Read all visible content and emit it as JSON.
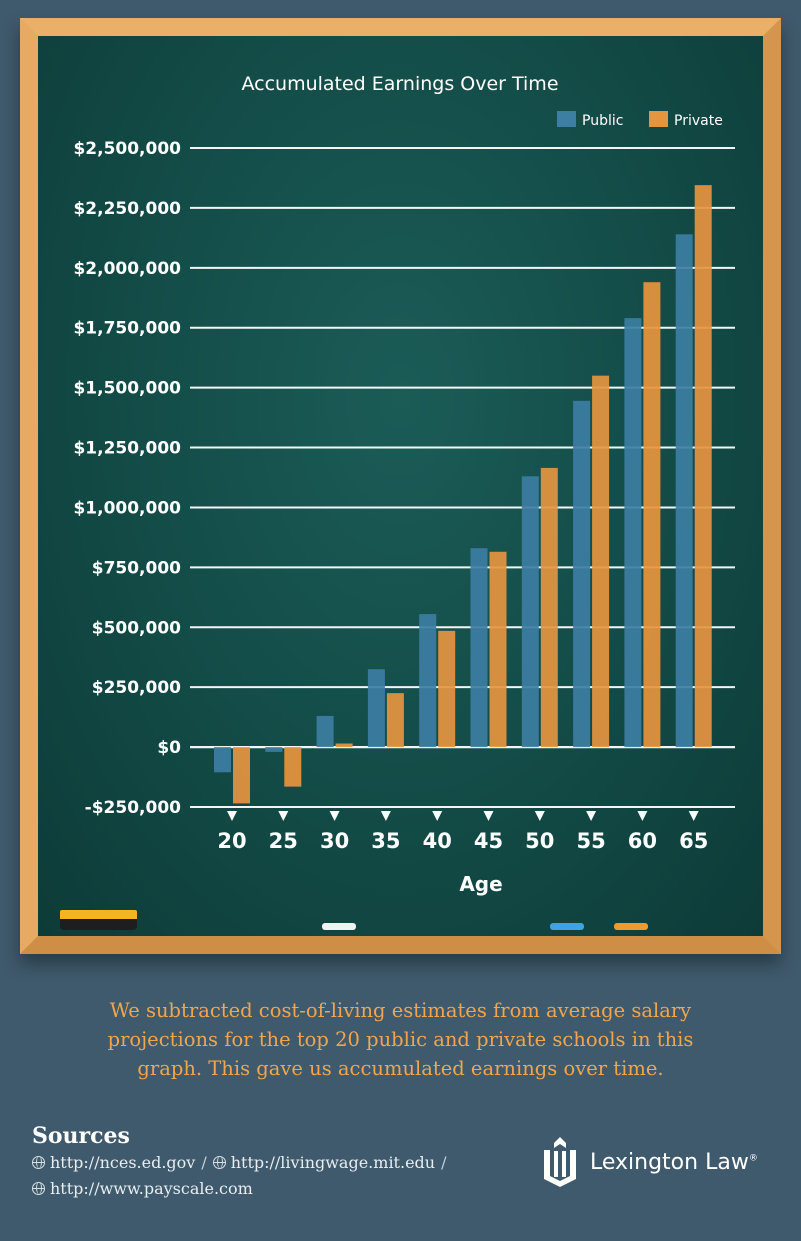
{
  "chart_data": {
    "type": "bar",
    "title": "Accumulated Earnings Over Time",
    "xlabel": "Age",
    "ylabel": "",
    "categories": [
      "20",
      "25",
      "30",
      "35",
      "40",
      "45",
      "50",
      "55",
      "60",
      "65"
    ],
    "series": [
      {
        "name": "Public",
        "values": [
          -105000,
          -20000,
          130000,
          325000,
          555000,
          830000,
          1130000,
          1445000,
          1790000,
          2140000
        ]
      },
      {
        "name": "Private",
        "values": [
          -235000,
          -165000,
          15000,
          225000,
          485000,
          815000,
          1165000,
          1550000,
          1940000,
          2345000
        ]
      }
    ],
    "ylim": [
      -250000,
      2500000
    ],
    "yticks": [
      2500000,
      2250000,
      2000000,
      1750000,
      1500000,
      1250000,
      1000000,
      750000,
      500000,
      250000,
      0,
      -250000
    ],
    "ytick_labels": [
      "$2,500,000",
      "$2,250,000",
      "$2,000,000",
      "$1,750,000",
      "$1,500,000",
      "$1,250,000",
      "$1,000,000",
      "$750,000",
      "$500,000",
      "$250,000",
      "$0",
      "-$250,000"
    ],
    "legend": "top-right",
    "grid": true,
    "colors": {
      "Public": "#3d7ea3",
      "Private": "#e6953f"
    }
  },
  "note": "We subtracted cost-of-living estimates from average salary projections for the top 20 public and private schools in this graph. This gave us accumulated earnings over time.",
  "sources": {
    "title": "Sources",
    "items": [
      "http://nces.ed.gov",
      "http://livingwage.mit.edu",
      "http://www.payscale.com"
    ],
    "separator": "/"
  },
  "brand": {
    "name": "Lexington Law",
    "mark": "®",
    "icon": "lexington-shield-icon"
  }
}
